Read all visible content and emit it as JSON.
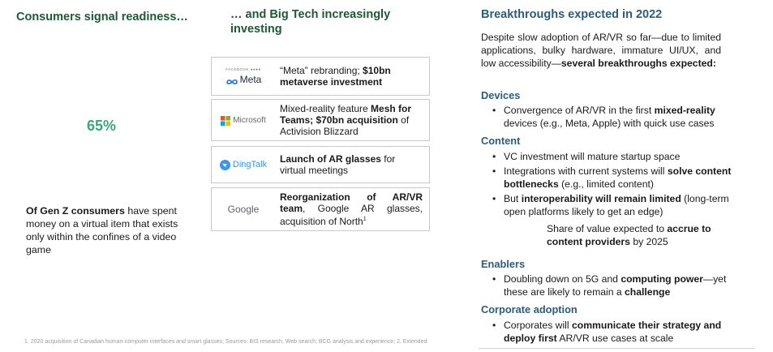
{
  "left": {
    "title": "Consumers signal readiness…",
    "stat": "65%",
    "stat_desc_bold": "Of Gen Z consumers",
    "stat_desc_rest": " have spent money on a virtual item that exists only within the confines of a video game"
  },
  "middle": {
    "title": "… and Big Tech increasingly investing",
    "cards": [
      {
        "logo_small": "FACEBOOK  ●●●●",
        "logo": "Meta",
        "logo_icon": "meta-infinity-icon",
        "t1": "“Meta” rebranding; ",
        "b1": "$10bn metaverse investment",
        "t2": ""
      },
      {
        "logo": "Microsoft",
        "logo_icon": "microsoft-squares-icon",
        "t1": "Mixed-reality feature ",
        "b1": "Mesh for Teams; $70bn acquisition",
        "t2": " of Activision Blizzard"
      },
      {
        "logo": "DingTalk",
        "logo_icon": "dingtalk-bird-icon",
        "t1": "",
        "b1": "Launch of AR glasses",
        "t2": " for virtual meetings"
      },
      {
        "logo": "Google",
        "t1": "",
        "b1": "Reorganization of AR/VR team",
        "t2": ", Google AR glasses, acquisition of North",
        "sup": "1"
      }
    ]
  },
  "right": {
    "title": "Breakthroughs expected in 2022",
    "intro": "Despite slow adoption of AR/VR so far—due to limited applications, bulky hardware, immature UI/UX, and low accessibility—",
    "intro_bold": "several breakthroughs expected:",
    "sections": {
      "devices": {
        "heading": "Devices",
        "b1_pre": "Convergence of AR/VR in the first ",
        "b1_bold": "mixed-reality",
        "b1_post": " devices (e.g., Meta, Apple) with quick use cases"
      },
      "content": {
        "heading": "Content",
        "b1": "VC investment will mature startup space",
        "b2_pre": "Integrations with current systems will ",
        "b2_bold": "solve content bottlenecks",
        "b2_post": " (e.g., limited content)",
        "b3_pre": "But ",
        "b3_bold": "interoperability will remain limited",
        "b3_post": " (long-term open platforms likely to get an edge)",
        "share_pre": "Share of value expected to ",
        "share_bold": "accrue to content providers",
        "share_post": " by 2025"
      },
      "enablers": {
        "heading": "Enablers",
        "b1_pre": "Doubling down on 5G and ",
        "b1_bold": "computing power",
        "b1_mid": "—yet these are likely to remain a ",
        "b1_bold2": "challenge"
      },
      "corporate": {
        "heading": "Corporate adoption",
        "b1_pre": "Corporates will ",
        "b1_bold": "communicate their strategy and deploy first",
        "b1_post": " AR/VR use cases at scale"
      }
    }
  },
  "footnote": "1. 2020 acquisition of Canadian human-computer interfaces and smart glasses; Sources: BIS research, Web search; BCG analysis and experience; 2. Extended",
  "colors": {
    "green_title": "#1c5a34",
    "blue_title": "#2a5c80",
    "stat": "#3aa57a"
  }
}
